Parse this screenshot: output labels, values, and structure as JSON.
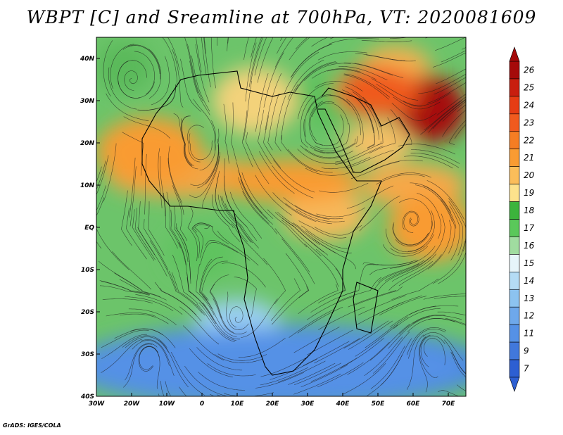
{
  "title": "WBPT [C] and Sreamline at 700hPa, VT: 2020081609",
  "credit": "GrADS: IGES/COLA",
  "map": {
    "lon_range": [
      -30,
      75
    ],
    "lat_range": [
      -40,
      45
    ],
    "lon_ticks": [
      {
        "value": -30,
        "label": "30W"
      },
      {
        "value": -20,
        "label": "20W"
      },
      {
        "value": -10,
        "label": "10W"
      },
      {
        "value": 0,
        "label": "0"
      },
      {
        "value": 10,
        "label": "10E"
      },
      {
        "value": 20,
        "label": "20E"
      },
      {
        "value": 30,
        "label": "30E"
      },
      {
        "value": 40,
        "label": "40E"
      },
      {
        "value": 50,
        "label": "50E"
      },
      {
        "value": 60,
        "label": "60E"
      },
      {
        "value": 70,
        "label": "70E"
      }
    ],
    "lat_ticks": [
      {
        "value": 40,
        "label": "40N"
      },
      {
        "value": 30,
        "label": "30N"
      },
      {
        "value": 20,
        "label": "20N"
      },
      {
        "value": 10,
        "label": "10N"
      },
      {
        "value": 0,
        "label": "EQ"
      },
      {
        "value": -10,
        "label": "10S"
      },
      {
        "value": -20,
        "label": "20S"
      },
      {
        "value": -30,
        "label": "30S"
      },
      {
        "value": -40,
        "label": "40S"
      }
    ],
    "warm_regions": [
      {
        "lon": -15,
        "lat": 18,
        "rlon": 15,
        "rlat": 8,
        "value": 21
      },
      {
        "lon": 25,
        "lat": 11,
        "rlon": 20,
        "rlat": 5,
        "value": 21
      },
      {
        "lon": 65,
        "lat": 28,
        "rlon": 10,
        "rlat": 8,
        "value": 26
      },
      {
        "lon": 50,
        "lat": 32,
        "rlon": 12,
        "rlat": 6,
        "value": 23
      },
      {
        "lon": 65,
        "lat": 0,
        "rlon": 12,
        "rlat": 8,
        "value": 21
      }
    ],
    "cold_regions": [
      {
        "lon": 20,
        "lat": -33,
        "rlon": 55,
        "rlat": 9,
        "value": 11
      }
    ]
  },
  "colorbar": {
    "levels": [
      {
        "label": "26",
        "color": "#a50a0a"
      },
      {
        "label": "25",
        "color": "#c81e0f"
      },
      {
        "label": "24",
        "color": "#e63c14"
      },
      {
        "label": "23",
        "color": "#f05a1e"
      },
      {
        "label": "22",
        "color": "#f57d23"
      },
      {
        "label": "21",
        "color": "#f99b32"
      },
      {
        "label": "20",
        "color": "#fbbd5a"
      },
      {
        "label": "19",
        "color": "#fde28c"
      },
      {
        "label": "18",
        "color": "#3cb43c"
      },
      {
        "label": "17",
        "color": "#5ac85a"
      },
      {
        "label": "16",
        "color": "#a0dca0"
      },
      {
        "label": "15",
        "color": "#e6f5fa"
      },
      {
        "label": "14",
        "color": "#b4dcf5"
      },
      {
        "label": "13",
        "color": "#8cc3f0"
      },
      {
        "label": "12",
        "color": "#6ea8eb"
      },
      {
        "label": "11",
        "color": "#5591e6"
      },
      {
        "label": "9",
        "color": "#4178dc"
      },
      {
        "label": "7",
        "color": "#2d5fd2"
      }
    ]
  }
}
